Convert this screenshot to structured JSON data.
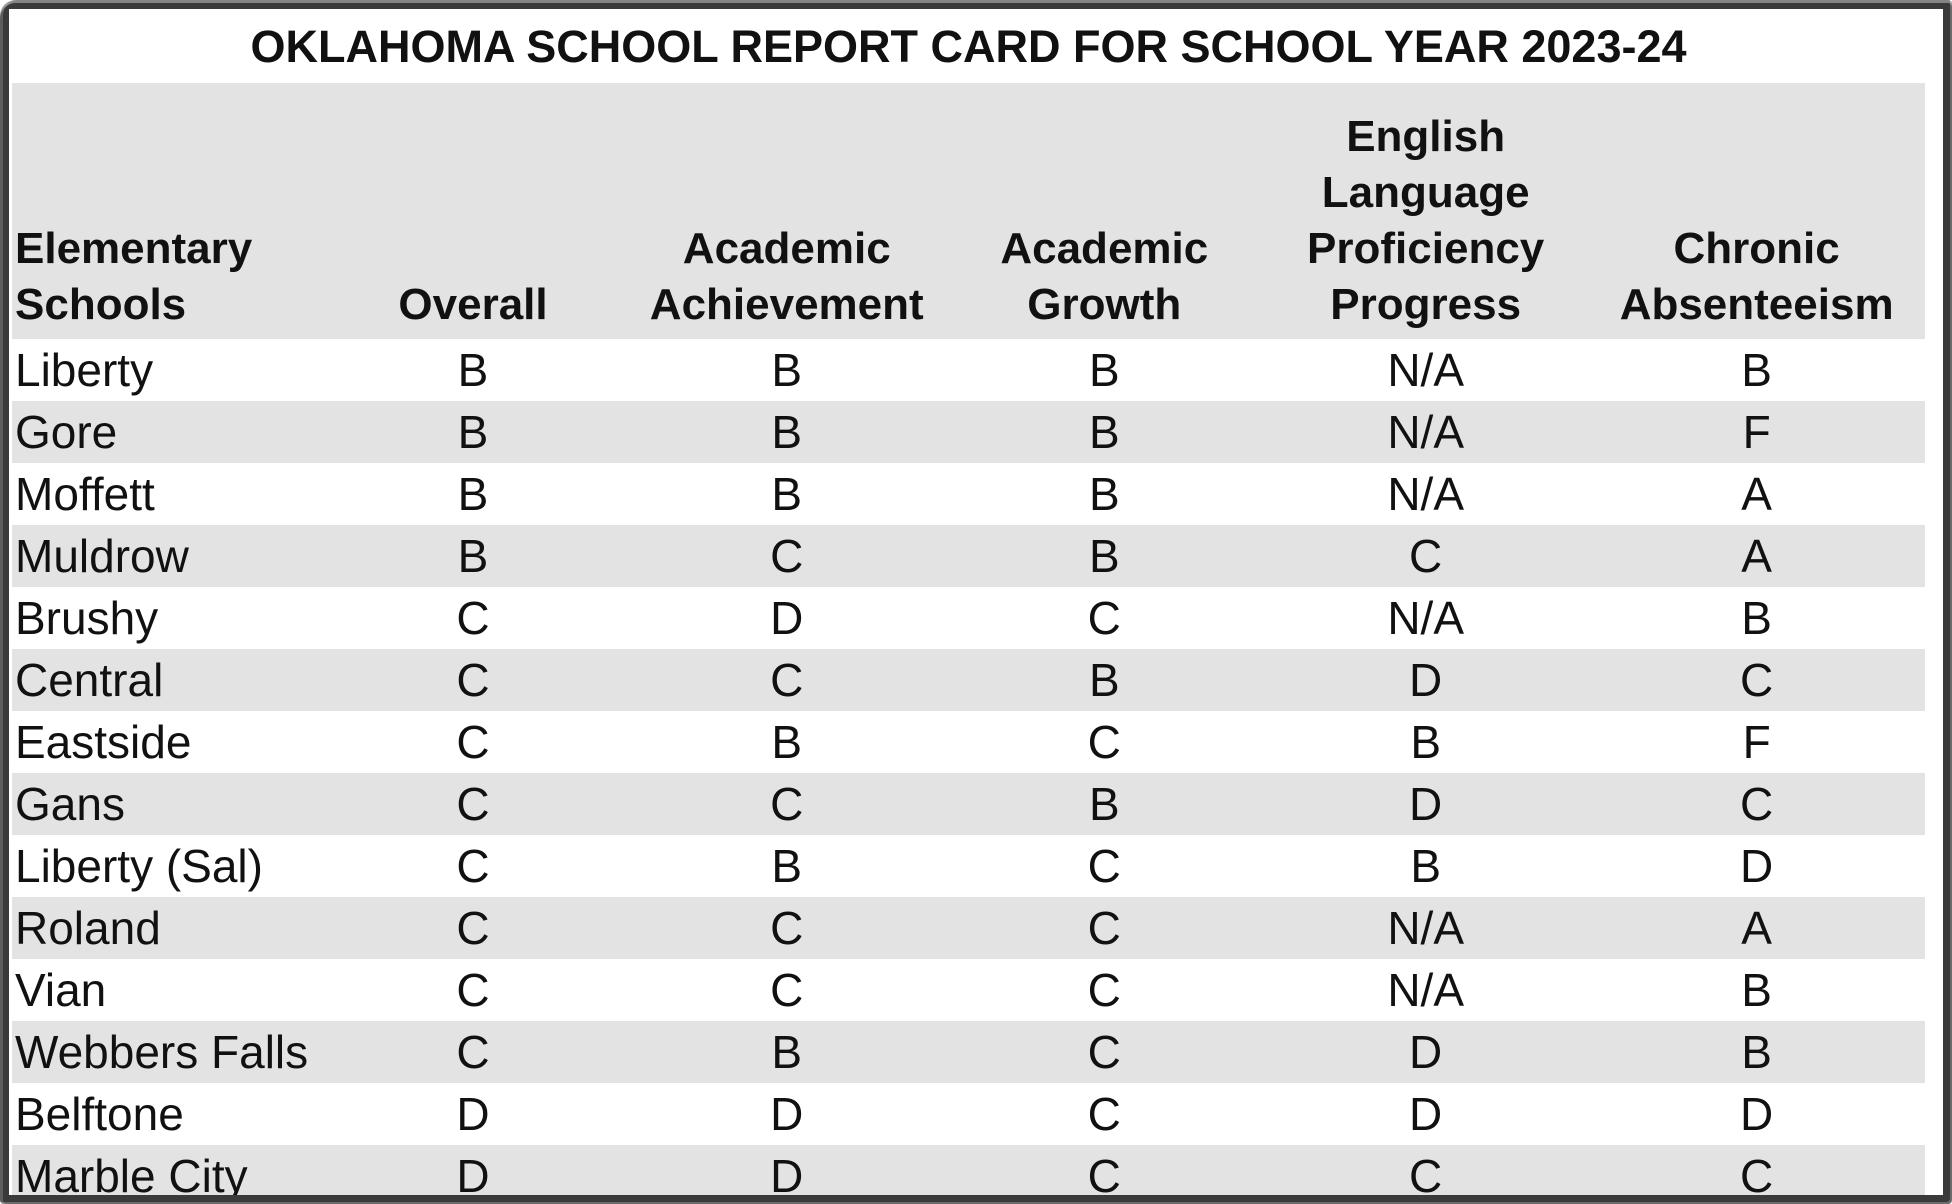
{
  "title": "OKLAHOMA SCHOOL REPORT CARD FOR SCHOOL YEAR 2023-24",
  "colors": {
    "stripe": "#e3e3e3",
    "frame": "#3a3a3a",
    "text": "#111111",
    "background": "#ffffff"
  },
  "table": {
    "columns": [
      {
        "label": "Elementary\nSchools",
        "align": "left"
      },
      {
        "label": "Overall",
        "align": "center"
      },
      {
        "label": "Academic\nAchievement",
        "align": "center"
      },
      {
        "label": "Academic\nGrowth",
        "align": "center"
      },
      {
        "label": "English\nLanguage\nProficiency\nProgress",
        "align": "center"
      },
      {
        "label": "Chronic\nAbsenteeism",
        "align": "center"
      }
    ],
    "rows": [
      {
        "school": "Liberty",
        "grades": [
          "B",
          "B",
          "B",
          "N/A",
          "B"
        ]
      },
      {
        "school": "Gore",
        "grades": [
          "B",
          "B",
          "B",
          "N/A",
          "F"
        ]
      },
      {
        "school": "Moffett",
        "grades": [
          "B",
          "B",
          "B",
          "N/A",
          "A"
        ]
      },
      {
        "school": "Muldrow",
        "grades": [
          "B",
          "C",
          "B",
          "C",
          "A"
        ]
      },
      {
        "school": "Brushy",
        "grades": [
          "C",
          "D",
          "C",
          "N/A",
          "B"
        ]
      },
      {
        "school": "Central",
        "grades": [
          "C",
          "C",
          "B",
          "D",
          "C"
        ]
      },
      {
        "school": "Eastside",
        "grades": [
          "C",
          "B",
          "C",
          "B",
          "F"
        ]
      },
      {
        "school": "Gans",
        "grades": [
          "C",
          "C",
          "B",
          "D",
          "C"
        ]
      },
      {
        "school": "Liberty (Sal)",
        "grades": [
          "C",
          "B",
          "C",
          "B",
          "D"
        ]
      },
      {
        "school": "Roland",
        "grades": [
          "C",
          "C",
          "C",
          "N/A",
          "A"
        ]
      },
      {
        "school": "Vian",
        "grades": [
          "C",
          "C",
          "C",
          "N/A",
          "B"
        ]
      },
      {
        "school": "Webbers Falls",
        "grades": [
          "C",
          "B",
          "C",
          "D",
          "B"
        ]
      },
      {
        "school": "Belftone",
        "grades": [
          "D",
          "D",
          "C",
          "D",
          "D"
        ]
      },
      {
        "school": "Marble City",
        "grades": [
          "D",
          "D",
          "C",
          "C",
          "C"
        ]
      }
    ]
  },
  "chart_data": {
    "type": "table",
    "title": "OKLAHOMA SCHOOL REPORT CARD FOR SCHOOL YEAR 2023-24",
    "columns": [
      "Elementary Schools",
      "Overall",
      "Academic Achievement",
      "Academic Growth",
      "English Language Proficiency Progress",
      "Chronic Absenteeism"
    ],
    "rows": [
      [
        "Liberty",
        "B",
        "B",
        "B",
        "N/A",
        "B"
      ],
      [
        "Gore",
        "B",
        "B",
        "B",
        "N/A",
        "F"
      ],
      [
        "Moffett",
        "B",
        "B",
        "B",
        "N/A",
        "A"
      ],
      [
        "Muldrow",
        "B",
        "C",
        "B",
        "C",
        "A"
      ],
      [
        "Brushy",
        "C",
        "D",
        "C",
        "N/A",
        "B"
      ],
      [
        "Central",
        "C",
        "C",
        "B",
        "D",
        "C"
      ],
      [
        "Eastside",
        "C",
        "B",
        "C",
        "B",
        "F"
      ],
      [
        "Gans",
        "C",
        "C",
        "B",
        "D",
        "C"
      ],
      [
        "Liberty (Sal)",
        "C",
        "B",
        "C",
        "B",
        "D"
      ],
      [
        "Roland",
        "C",
        "C",
        "C",
        "N/A",
        "A"
      ],
      [
        "Vian",
        "C",
        "C",
        "C",
        "N/A",
        "B"
      ],
      [
        "Webbers Falls",
        "C",
        "B",
        "C",
        "D",
        "B"
      ],
      [
        "Belftone",
        "D",
        "D",
        "C",
        "D",
        "D"
      ],
      [
        "Marble City",
        "D",
        "D",
        "C",
        "C",
        "C"
      ]
    ],
    "layout": {
      "striped": true,
      "stripe_color": "#e3e3e3",
      "header_background": "#e3e3e3",
      "gridlines": false
    }
  }
}
